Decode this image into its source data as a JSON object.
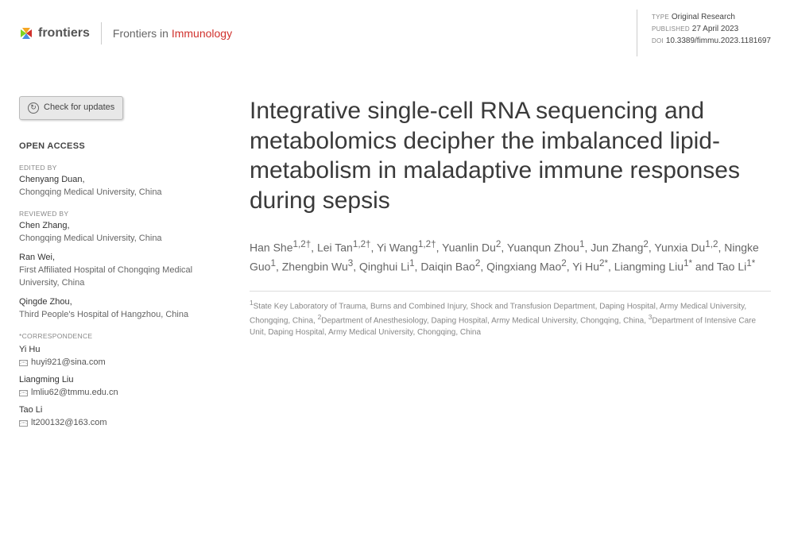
{
  "header": {
    "logo_text": "frontiers",
    "journal_prefix": "Frontiers in ",
    "journal_name": "Immunology",
    "meta": {
      "type_label": "TYPE",
      "type_value": "Original Research",
      "published_label": "PUBLISHED",
      "published_value": "27 April 2023",
      "doi_label": "DOI",
      "doi_value": "10.3389/fimmu.2023.1181697"
    }
  },
  "sidebar": {
    "check_updates": "Check for updates",
    "open_access": "OPEN ACCESS",
    "edited_by_label": "EDITED BY",
    "editor": {
      "name": "Chenyang Duan,",
      "affil": "Chongqing Medical University, China"
    },
    "reviewed_by_label": "REVIEWED BY",
    "reviewers": [
      {
        "name": "Chen Zhang,",
        "affil": "Chongqing Medical University, China"
      },
      {
        "name": "Ran Wei,",
        "affil": "First Affiliated Hospital of Chongqing Medical University, China"
      },
      {
        "name": "Qingde Zhou,",
        "affil": "Third People's Hospital of Hangzhou, China"
      }
    ],
    "correspondence_label": "*CORRESPONDENCE",
    "correspondence": [
      {
        "name": "Yi Hu",
        "email": "huyi921@sina.com"
      },
      {
        "name": "Liangming Liu",
        "email": "lmliu62@tmmu.edu.cn"
      },
      {
        "name": "Tao Li",
        "email": "lt200132@163.com"
      }
    ]
  },
  "main": {
    "title": "Integrative single-cell RNA sequencing and metabolomics decipher the imbalanced lipid-metabolism in maladaptive immune responses during sepsis",
    "authors_html": "Han She<sup>1,2†</sup>, Lei Tan<sup>1,2†</sup>, Yi Wang<sup>1,2†</sup>, Yuanlin Du<sup>2</sup>, Yuanqun Zhou<sup>1</sup>, Jun Zhang<sup>2</sup>, Yunxia Du<sup>1,2</sup>, Ningke Guo<sup>1</sup>, Zhengbin Wu<sup>3</sup>, Qinghui Li<sup>1</sup>, Daiqin Bao<sup>2</sup>, Qingxiang Mao<sup>2</sup>, Yi Hu<sup>2*</sup>, Liangming Liu<sup>1*</sup> and Tao Li<sup>1*</sup>",
    "affiliations_html": "<sup>1</sup>State Key Laboratory of Trauma, Burns and Combined Injury, Shock and Transfusion Department, Daping Hospital, Army Medical University, Chongqing, China, <sup>2</sup>Department of Anesthesiology, Daping Hospital, Army Medical University, Chongqing, China, <sup>3</sup>Department of Intensive Care Unit, Daping Hospital, Army Medical University, Chongqing, China"
  }
}
